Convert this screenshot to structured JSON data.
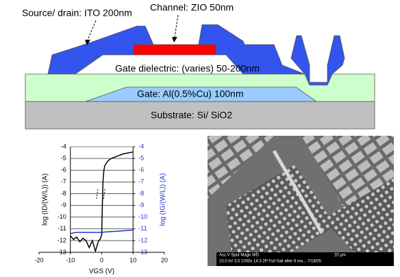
{
  "diagram": {
    "source_drain": "Source/ drain: ITO 200nm",
    "channel": "Channel: ZIO 50nm",
    "dielectric": "Gate dielectric: (varies) 50-200nm",
    "gate": "Gate: Al(0.5%Cu) 100nm",
    "substrate": "Substrate: Si/ SiO2"
  },
  "sem": {
    "info_header": "Acc.V  Spot Magn    WD",
    "info_values": "10.0 kV 3.0  1000x  14.3  2P  Full Sail after 6 mo...  7/18/05",
    "scale": "20 µm"
  },
  "chart_data": {
    "type": "line",
    "x_label": "VGS (V)",
    "y_label": "log (ID/(W/L)) (A)",
    "y2_label": "log (IG/(W/L)) (A)",
    "xlim": [
      -20,
      20
    ],
    "xticks": [
      -20,
      -10,
      0,
      10,
      20
    ],
    "ylim": [
      -13,
      -4
    ],
    "yticks": [
      -13,
      -12,
      -11,
      -10,
      -9,
      -8,
      -7,
      -6,
      -5,
      -4
    ],
    "y2lim": [
      -13,
      -4
    ],
    "y2ticks": [
      -13,
      -12,
      -11,
      -10,
      -9,
      -8,
      -7,
      -6,
      -5,
      -4
    ],
    "y_axis_positions": [
      -10,
      10
    ],
    "grid": true,
    "y2_color": "#2233cc",
    "series": [
      {
        "color": "#000000",
        "x": [
          -10,
          -9,
          -8,
          -7,
          -6,
          -5,
          -4,
          -3,
          -2,
          -1,
          -0.5,
          0,
          0.2,
          0.4,
          0.7,
          1,
          2,
          3,
          5,
          7,
          10
        ],
        "values": [
          -11.6,
          -11.9,
          -11.7,
          -12.1,
          -11.8,
          -12.0,
          -12.6,
          -12.0,
          -12.9,
          -12.0,
          -11.9,
          -11.5,
          -9,
          -7,
          -6,
          -5.6,
          -5.2,
          -5.0,
          -4.8,
          -4.6,
          -4.45
        ]
      },
      {
        "color": "#2233cc",
        "axis": "y2",
        "x": [
          -10,
          -8,
          -5,
          -2,
          0,
          2,
          5,
          10
        ],
        "values": [
          -11.4,
          -11.3,
          -11.3,
          -11.3,
          -11.3,
          -11.25,
          -11.2,
          -11.1
        ]
      }
    ]
  }
}
